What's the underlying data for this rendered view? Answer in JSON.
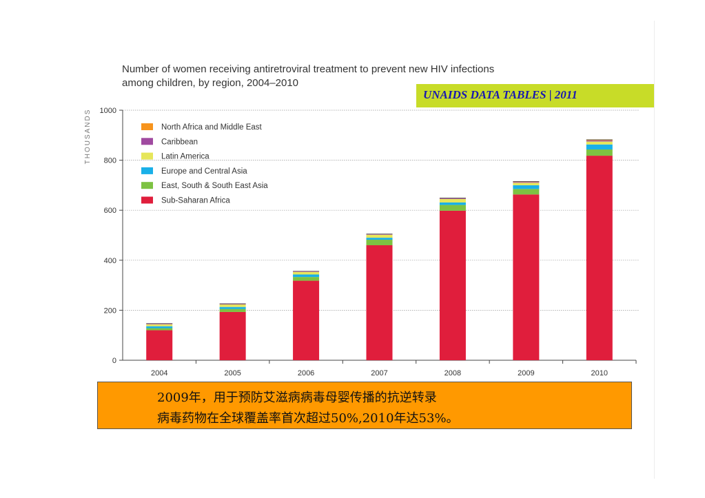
{
  "title_line1": "Number of women receiving antiretroviral treatment to prevent new HIV infections",
  "title_line2": "among children, by region, 2004–2010",
  "banner": "UNAIDS DATA TABLES | 2011",
  "colors": {
    "banner_bg": "#c8dc28",
    "banner_text": "#1818b0",
    "note_bg": "#ff9900"
  },
  "chart_data": {
    "type": "bar",
    "stacked": true,
    "ylabel": "THOUSANDS",
    "ylim": [
      0,
      1000
    ],
    "yticks": [
      0,
      200,
      400,
      600,
      800,
      1000
    ],
    "grid": true,
    "legend_position": "top-left",
    "categories": [
      "2004",
      "2005",
      "2006",
      "2007",
      "2008",
      "2009",
      "2010"
    ],
    "series": [
      {
        "name": "Sub-Saharan Africa",
        "color": "#e01e3c",
        "values": [
          120,
          193,
          318,
          460,
          598,
          663,
          818
        ]
      },
      {
        "name": "East, South & South East Asia",
        "color": "#7dc242",
        "values": [
          8,
          12,
          15,
          22,
          23,
          22,
          25
        ]
      },
      {
        "name": "Europe and Central Asia",
        "color": "#1ab0e8",
        "values": [
          8,
          8,
          10,
          8,
          10,
          15,
          20
        ]
      },
      {
        "name": "Latin America",
        "color": "#e6e65a",
        "values": [
          8,
          10,
          10,
          12,
          14,
          10,
          12
        ]
      },
      {
        "name": "Caribbean",
        "color": "#a04aa0",
        "values": [
          2,
          2,
          2,
          2,
          3,
          3,
          4
        ]
      },
      {
        "name": "North Africa and Middle East",
        "color": "#f7941d",
        "values": [
          1,
          1,
          1,
          1,
          1,
          2,
          3
        ]
      }
    ],
    "legend_order": [
      "North Africa and Middle East",
      "Caribbean",
      "Latin America",
      "Europe and Central Asia",
      "East, South & South East Asia",
      "Sub-Saharan Africa"
    ]
  },
  "note": {
    "line1": "2009年，用于预防艾滋病病毒母婴传播的抗逆转录",
    "line2": "病毒药物在全球覆盖率首次超过50%,2010年达53%。"
  }
}
